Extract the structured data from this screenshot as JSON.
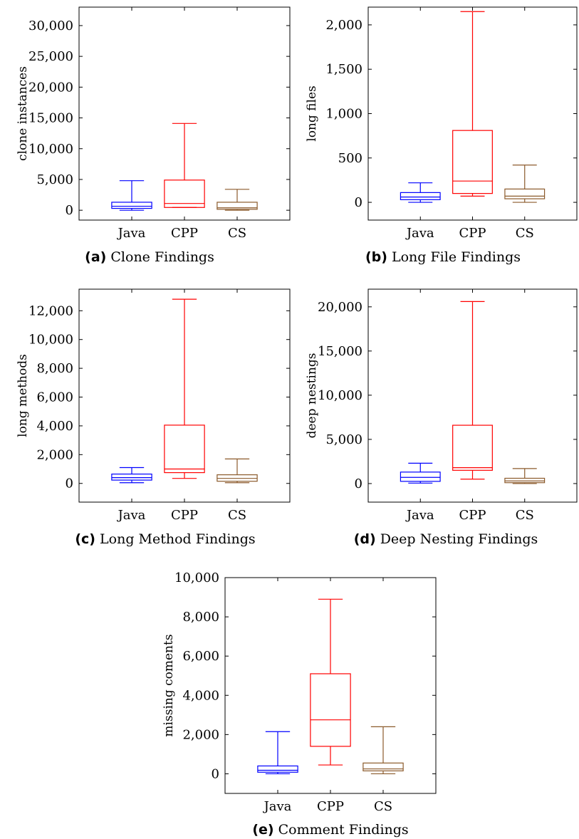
{
  "colors": {
    "Java": "#0000ff",
    "CPP": "#ff0000",
    "CS": "#8b5a2b"
  },
  "chart_data": [
    {
      "type": "box",
      "tag": "(a)",
      "caption": "Clone Findings",
      "ylabel": "clone instances",
      "categories": [
        "Java",
        "CPP",
        "CS"
      ],
      "ylim": [
        -1600,
        33000
      ],
      "yticks": [
        0,
        5000,
        10000,
        15000,
        20000,
        25000,
        30000
      ],
      "ytick_labels": [
        "0",
        "5,000",
        "10,000",
        "15,000",
        "20,000",
        "25,000",
        "30,000"
      ],
      "boxes": [
        {
          "name": "Java",
          "min": 0,
          "q1": 300,
          "median": 650,
          "q3": 1300,
          "max": 4800
        },
        {
          "name": "CPP",
          "min": 450,
          "q1": 450,
          "median": 1100,
          "q3": 4900,
          "max": 14100
        },
        {
          "name": "CS",
          "min": 0,
          "q1": 150,
          "median": 400,
          "q3": 1300,
          "max": 3400
        }
      ]
    },
    {
      "type": "box",
      "tag": "(b)",
      "caption": "Long File Findings",
      "ylabel": "long files",
      "categories": [
        "Java",
        "CPP",
        "CS"
      ],
      "ylim": [
        -200,
        2200
      ],
      "yticks": [
        0,
        500,
        1000,
        1500,
        2000
      ],
      "ytick_labels": [
        "0",
        "500",
        "1,000",
        "1,500",
        "2,000"
      ],
      "boxes": [
        {
          "name": "Java",
          "min": 0,
          "q1": 30,
          "median": 60,
          "q3": 110,
          "max": 220
        },
        {
          "name": "CPP",
          "min": 70,
          "q1": 100,
          "median": 240,
          "q3": 810,
          "max": 2150
        },
        {
          "name": "CS",
          "min": 0,
          "q1": 40,
          "median": 70,
          "q3": 150,
          "max": 420
        }
      ]
    },
    {
      "type": "box",
      "tag": "(c)",
      "caption": "Long Method Findings",
      "ylabel": "long methods",
      "categories": [
        "Java",
        "CPP",
        "CS"
      ],
      "ylim": [
        -1300,
        13500
      ],
      "yticks": [
        0,
        2000,
        4000,
        6000,
        8000,
        10000,
        12000
      ],
      "ytick_labels": [
        "0",
        "2,000",
        "4,000",
        "6,000",
        "8,000",
        "10,000",
        "12,000"
      ],
      "boxes": [
        {
          "name": "Java",
          "min": 50,
          "q1": 230,
          "median": 400,
          "q3": 650,
          "max": 1100
        },
        {
          "name": "CPP",
          "min": 350,
          "q1": 750,
          "median": 1000,
          "q3": 4050,
          "max": 12800
        },
        {
          "name": "CS",
          "min": 50,
          "q1": 150,
          "median": 350,
          "q3": 600,
          "max": 1700
        }
      ]
    },
    {
      "type": "box",
      "tag": "(d)",
      "caption": "Deep Nesting Findings",
      "ylabel": "deep nestings",
      "categories": [
        "Java",
        "CPP",
        "CS"
      ],
      "ylim": [
        -2100,
        22000
      ],
      "yticks": [
        0,
        5000,
        10000,
        15000,
        20000
      ],
      "ytick_labels": [
        "0",
        "5,000",
        "10,000",
        "15,000",
        "20,000"
      ],
      "boxes": [
        {
          "name": "Java",
          "min": 50,
          "q1": 250,
          "median": 700,
          "q3": 1300,
          "max": 2300
        },
        {
          "name": "CPP",
          "min": 500,
          "q1": 1500,
          "median": 1800,
          "q3": 6600,
          "max": 20600
        },
        {
          "name": "CS",
          "min": 0,
          "q1": 100,
          "median": 300,
          "q3": 600,
          "max": 1700
        }
      ]
    },
    {
      "type": "box",
      "tag": "(e)",
      "caption": "Comment Findings",
      "ylabel": "missing coments",
      "categories": [
        "Java",
        "CPP",
        "CS"
      ],
      "ylim": [
        -1000,
        10000
      ],
      "yticks": [
        0,
        2000,
        4000,
        6000,
        8000,
        10000
      ],
      "ytick_labels": [
        "0",
        "2,000",
        "4,000",
        "6,000",
        "8,000",
        "10,000"
      ],
      "boxes": [
        {
          "name": "Java",
          "min": 0,
          "q1": 80,
          "median": 180,
          "q3": 400,
          "max": 2150
        },
        {
          "name": "CPP",
          "min": 450,
          "q1": 1400,
          "median": 2750,
          "q3": 5100,
          "max": 8900
        },
        {
          "name": "CS",
          "min": 0,
          "q1": 150,
          "median": 250,
          "q3": 550,
          "max": 2400
        }
      ]
    }
  ]
}
